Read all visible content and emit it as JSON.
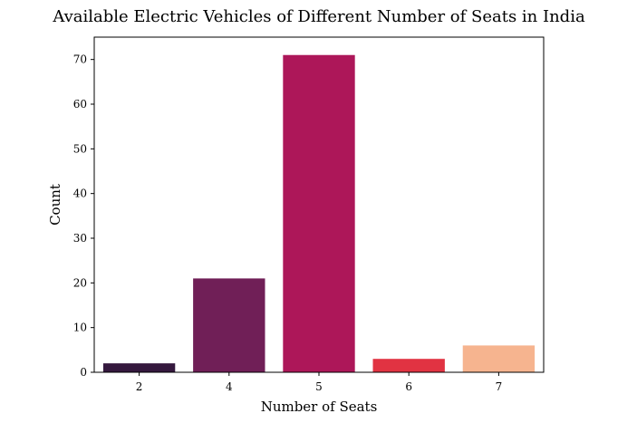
{
  "chart_data": {
    "type": "bar",
    "title": "Available Electric Vehicles of Different Number of Seats in India",
    "xlabel": "Number of Seats",
    "ylabel": "Count",
    "categories": [
      "2",
      "4",
      "5",
      "6",
      "7"
    ],
    "values": [
      2,
      21,
      71,
      3,
      6
    ],
    "colors": [
      "#35193e",
      "#701f57",
      "#ad1759",
      "#e13342",
      "#f6b48f"
    ],
    "ylim": [
      0,
      75
    ],
    "yticks": [
      0,
      10,
      20,
      30,
      40,
      50,
      60,
      70
    ],
    "grid": false,
    "legend": "none"
  }
}
